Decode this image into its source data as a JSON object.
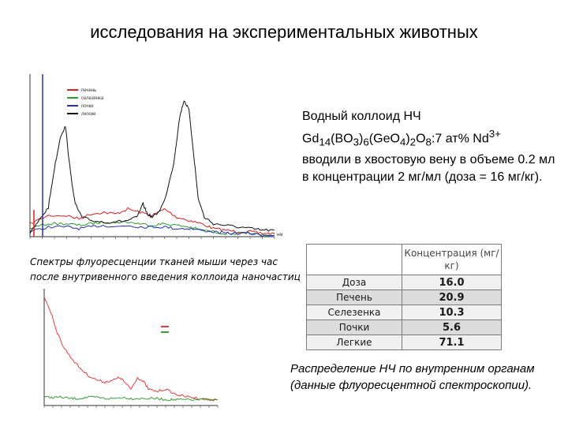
{
  "title": "исследования на экспериментальных животных",
  "description": {
    "line1": "Водный коллоид НЧ",
    "formula": {
      "p1": "Gd",
      "s1": "14",
      "p2": "(BO",
      "s2": "3",
      "p3": ")",
      "s3": "6",
      "p4": "(GeO",
      "s4": "4",
      "p5": ")",
      "s5": "2",
      "p6": "O",
      "s6": "8",
      "p7": ":7 ат% Nd",
      "sup": "3+"
    },
    "rest": "вводили в хвостовую вену в объеме 0.2 мл в концентрации 2 мг/мл (доза = 16 мг/кг)."
  },
  "caption_spectra": "Спектры флуоресценции тканей мыши через час после внутривенного введения коллоида наночастиц",
  "caption_table": "Распределение НЧ по внутренним органам (данные флуоресцентной спектроскопии).",
  "table": {
    "header": "Концентрация (мг/кг)",
    "rows": [
      {
        "label": "Доза",
        "value": "16.0"
      },
      {
        "label": "Печень",
        "value": "20.9"
      },
      {
        "label": "Селезенка",
        "value": "10.3"
      },
      {
        "label": "Почки",
        "value": "5.6"
      },
      {
        "label": "Легкие",
        "value": "71.1"
      }
    ]
  },
  "chart_data": [
    {
      "type": "line",
      "title": "",
      "xlabel": "нм",
      "ylabel": "",
      "xlim": [
        800,
        1200
      ],
      "ylim": [
        0,
        1
      ],
      "grid": false,
      "legend_position": "top-left",
      "series": [
        {
          "name": "печень",
          "color": "#e02020",
          "x": [
            800,
            830,
            860,
            880,
            900,
            920,
            940,
            960,
            980,
            1000,
            1020,
            1040,
            1060,
            1080,
            1100,
            1120,
            1140,
            1160,
            1180,
            1200
          ],
          "y": [
            0.08,
            0.13,
            0.13,
            0.11,
            0.14,
            0.15,
            0.14,
            0.17,
            0.15,
            0.13,
            0.17,
            0.12,
            0.1,
            0.08,
            0.05,
            0.04,
            0.03,
            0.03,
            0.02,
            0.02
          ]
        },
        {
          "name": "селезенка",
          "color": "#2c9a2c",
          "x": [
            800,
            830,
            860,
            880,
            900,
            920,
            940,
            960,
            980,
            1000,
            1020,
            1040,
            1060,
            1080,
            1100,
            1120,
            1140,
            1160,
            1180,
            1200
          ],
          "y": [
            0.05,
            0.08,
            0.08,
            0.07,
            0.08,
            0.09,
            0.09,
            0.09,
            0.08,
            0.07,
            0.08,
            0.07,
            0.06,
            0.04,
            0.03,
            0.02,
            0.02,
            0.02,
            0.01,
            0.01
          ]
        },
        {
          "name": "почки",
          "color": "#2230b8",
          "x": [
            800,
            830,
            860,
            880,
            900,
            920,
            940,
            960,
            980,
            1000,
            1020,
            1040,
            1060,
            1080,
            1100,
            1120,
            1140,
            1160,
            1180,
            1200
          ],
          "y": [
            0.03,
            0.06,
            0.06,
            0.05,
            0.06,
            0.07,
            0.06,
            0.07,
            0.06,
            0.06,
            0.06,
            0.05,
            0.05,
            0.04,
            0.03,
            0.02,
            0.02,
            0.02,
            0.01,
            0.01
          ]
        },
        {
          "name": "легкие",
          "color": "#111111",
          "x": [
            800,
            815,
            830,
            840,
            850,
            858,
            866,
            874,
            885,
            900,
            920,
            940,
            960,
            975,
            985,
            992,
            1000,
            1010,
            1020,
            1035,
            1045,
            1052,
            1060,
            1068,
            1075,
            1085,
            1100,
            1120,
            1140,
            1160,
            1180,
            1200
          ],
          "y": [
            0.02,
            0.1,
            0.18,
            0.42,
            0.62,
            0.68,
            0.4,
            0.2,
            0.12,
            0.1,
            0.09,
            0.09,
            0.1,
            0.12,
            0.2,
            0.14,
            0.12,
            0.15,
            0.22,
            0.45,
            0.74,
            0.84,
            0.78,
            0.5,
            0.24,
            0.12,
            0.08,
            0.07,
            0.06,
            0.05,
            0.04,
            0.04
          ]
        }
      ]
    },
    {
      "type": "line",
      "title": "",
      "xlabel": "",
      "ylabel": "",
      "xlim": [
        800,
        1200
      ],
      "ylim": [
        0,
        1
      ],
      "grid": false,
      "legend_position": "top-right",
      "series": [
        {
          "name": "",
          "color": "#e04040",
          "x": [
            800,
            810,
            820,
            830,
            845,
            860,
            880,
            900,
            920,
            940,
            960,
            975,
            990,
            1000,
            1015,
            1030,
            1040,
            1060,
            1080,
            1100,
            1120,
            1140,
            1160,
            1180,
            1200
          ],
          "y": [
            0.92,
            0.85,
            0.75,
            0.62,
            0.5,
            0.42,
            0.33,
            0.26,
            0.22,
            0.2,
            0.22,
            0.24,
            0.18,
            0.14,
            0.24,
            0.2,
            0.14,
            0.12,
            0.14,
            0.1,
            0.08,
            0.07,
            0.06,
            0.05,
            0.05
          ]
        },
        {
          "name": "",
          "color": "#3aa03a",
          "x": [
            800,
            820,
            840,
            860,
            880,
            900,
            920,
            940,
            960,
            980,
            1000,
            1020,
            1040,
            1060,
            1080,
            1100,
            1120,
            1140,
            1160,
            1180,
            1200
          ],
          "y": [
            0.07,
            0.07,
            0.07,
            0.06,
            0.06,
            0.07,
            0.07,
            0.06,
            0.06,
            0.07,
            0.06,
            0.06,
            0.06,
            0.06,
            0.05,
            0.05,
            0.05,
            0.05,
            0.05,
            0.05,
            0.05
          ]
        }
      ]
    }
  ]
}
